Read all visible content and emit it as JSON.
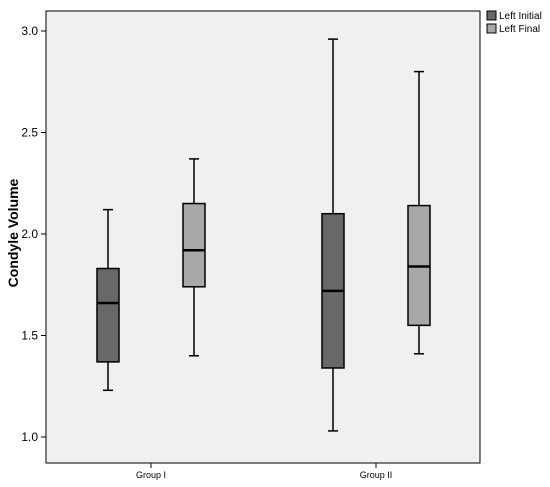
{
  "chart_data": {
    "type": "boxplot",
    "title": "",
    "xlabel": "",
    "ylabel": "Condyle Volume",
    "ylim": [
      1.0,
      3.0
    ],
    "y_ticks": [
      "1.0",
      "1.5",
      "2.0",
      "2.5",
      "3.0"
    ],
    "categories": [
      "Group I",
      "Group II"
    ],
    "legend_position": "top-right",
    "series": [
      {
        "name": "Left Initial",
        "color": "#686868",
        "boxes": [
          {
            "min": 1.23,
            "q1": 1.37,
            "median": 1.66,
            "q3": 1.83,
            "max": 2.12
          },
          {
            "min": 1.03,
            "q1": 1.34,
            "median": 1.72,
            "q3": 2.1,
            "max": 2.96
          }
        ]
      },
      {
        "name": "Left Final",
        "color": "#a8a8a8",
        "boxes": [
          {
            "min": 1.4,
            "q1": 1.74,
            "median": 1.92,
            "q3": 2.15,
            "max": 2.37
          },
          {
            "min": 1.41,
            "q1": 1.55,
            "median": 1.84,
            "q3": 2.14,
            "max": 2.8
          }
        ]
      }
    ],
    "background": "#f0f0f0"
  }
}
